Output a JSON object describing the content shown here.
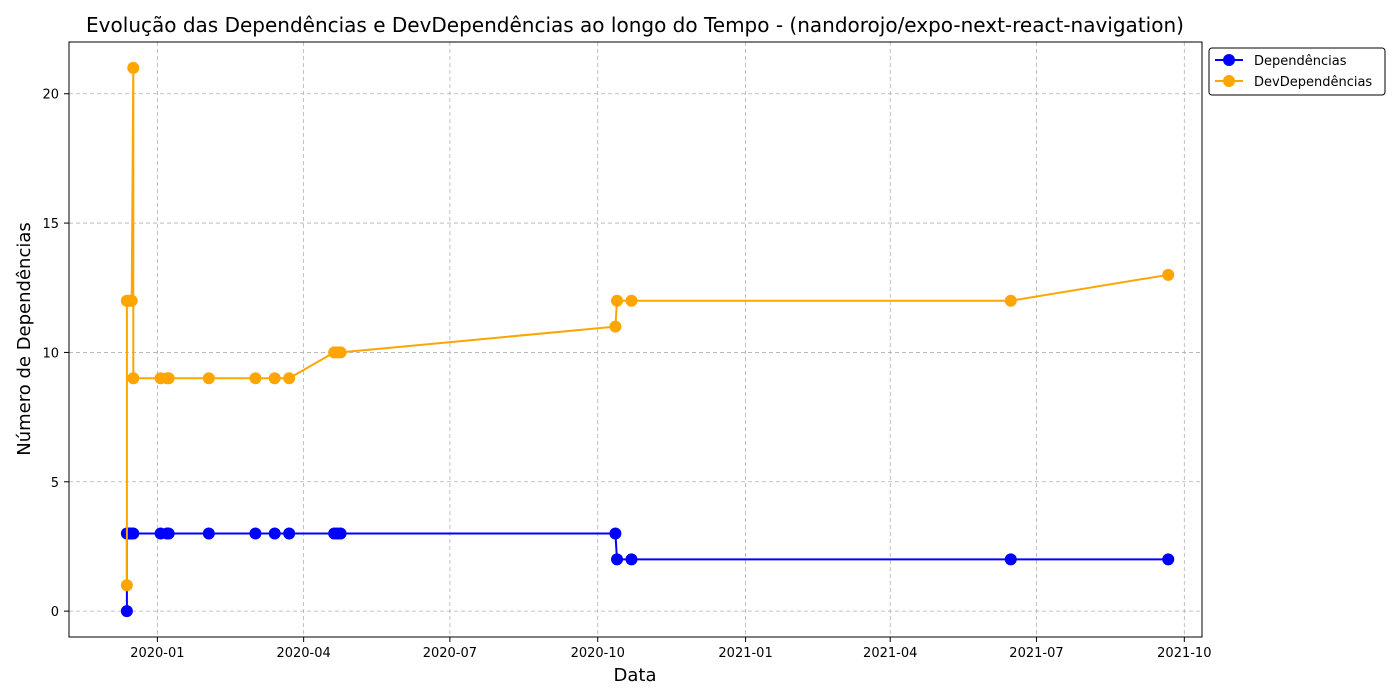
{
  "chart_data": {
    "type": "line",
    "title": "Evolução das Dependências e DevDependências ao longo do Tempo - (nandorojo/expo-next-react-navigation)",
    "xlabel": "Data",
    "ylabel": "Número de Dependências",
    "x_ticks": [
      "2020-01",
      "2020-04",
      "2020-07",
      "2020-10",
      "2021-01",
      "2021-04",
      "2021-07",
      "2021-10"
    ],
    "y_ticks": [
      "0",
      "5",
      "10",
      "15",
      "20"
    ],
    "xlim": [
      "2019-11-07",
      "2021-10-12"
    ],
    "ylim": [
      -1,
      22
    ],
    "grid": true,
    "legend_position": "top-right-outside",
    "series": [
      {
        "name": "Dependências",
        "color": "#0000ff",
        "points": [
          [
            "2019-12-13",
            0
          ],
          [
            "2019-12-13",
            3
          ],
          [
            "2019-12-14",
            3
          ],
          [
            "2019-12-15",
            3
          ],
          [
            "2019-12-16",
            3
          ],
          [
            "2019-12-17",
            3
          ],
          [
            "2020-01-03",
            3
          ],
          [
            "2020-01-07",
            3
          ],
          [
            "2020-01-08",
            3
          ],
          [
            "2020-02-02",
            3
          ],
          [
            "2020-03-02",
            3
          ],
          [
            "2020-03-14",
            3
          ],
          [
            "2020-03-23",
            3
          ],
          [
            "2020-04-20",
            3
          ],
          [
            "2020-04-22",
            3
          ],
          [
            "2020-04-24",
            3
          ],
          [
            "2020-10-12",
            3
          ],
          [
            "2020-10-13",
            2
          ],
          [
            "2020-10-22",
            2
          ],
          [
            "2021-06-15",
            2
          ],
          [
            "2021-09-21",
            2
          ]
        ]
      },
      {
        "name": "DevDependências",
        "color": "#ffa500",
        "points": [
          [
            "2019-12-13",
            1
          ],
          [
            "2019-12-13",
            12
          ],
          [
            "2019-12-14",
            12
          ],
          [
            "2019-12-15",
            12
          ],
          [
            "2019-12-16",
            12
          ],
          [
            "2019-12-17",
            21
          ],
          [
            "2019-12-17",
            9
          ],
          [
            "2020-01-03",
            9
          ],
          [
            "2020-01-07",
            9
          ],
          [
            "2020-01-08",
            9
          ],
          [
            "2020-02-02",
            9
          ],
          [
            "2020-03-02",
            9
          ],
          [
            "2020-03-14",
            9
          ],
          [
            "2020-03-23",
            9
          ],
          [
            "2020-04-20",
            10
          ],
          [
            "2020-04-22",
            10
          ],
          [
            "2020-04-24",
            10
          ],
          [
            "2020-10-12",
            11
          ],
          [
            "2020-10-13",
            12
          ],
          [
            "2020-10-22",
            12
          ],
          [
            "2021-06-15",
            12
          ],
          [
            "2021-09-21",
            13
          ]
        ]
      }
    ]
  }
}
